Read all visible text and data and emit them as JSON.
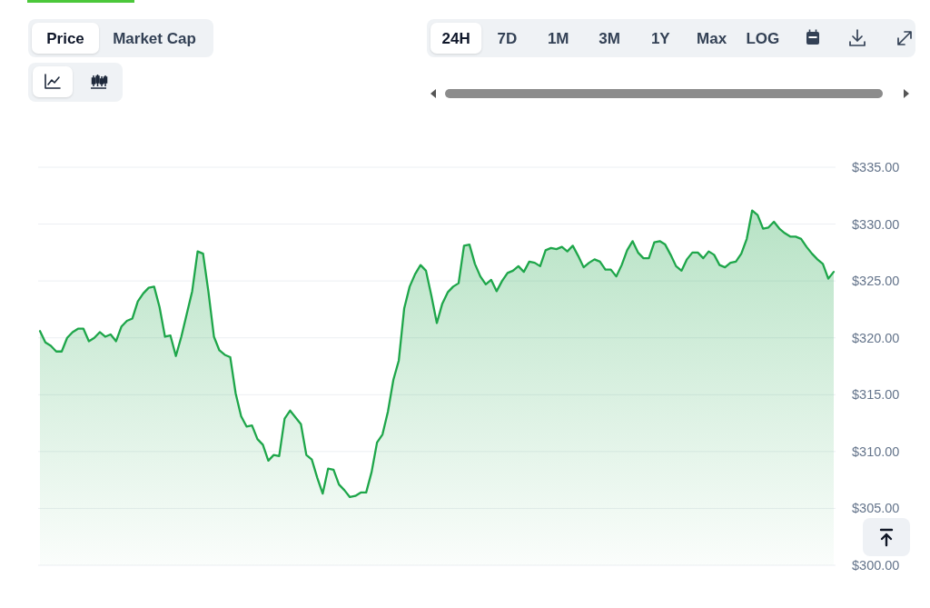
{
  "chart_data": {
    "type": "area",
    "color": "#1ea64a",
    "categories": [
      null,
      null,
      null,
      null,
      null,
      null,
      null,
      null,
      null,
      null,
      null,
      null,
      null,
      null,
      null,
      null,
      null,
      null,
      null,
      null,
      null,
      null,
      null,
      null,
      null,
      null,
      null,
      null,
      null,
      null,
      null,
      null,
      null,
      null,
      null,
      null,
      null,
      null,
      null,
      null,
      null,
      null,
      null,
      null,
      null,
      null,
      null,
      null,
      null,
      null,
      null,
      null,
      null,
      null,
      null,
      null,
      null,
      null,
      null,
      null,
      null,
      null,
      null,
      null,
      null,
      null,
      null,
      null,
      null,
      null,
      null,
      null,
      null,
      null,
      null,
      null,
      null,
      null,
      null,
      null,
      null,
      null,
      null,
      null,
      null,
      null,
      null,
      null,
      null,
      null,
      null,
      null,
      null,
      null,
      null,
      null,
      null,
      null,
      null,
      null,
      null,
      null,
      null,
      null,
      null,
      null,
      null,
      null,
      null,
      null,
      null,
      null,
      null,
      null,
      null,
      null,
      null,
      null,
      null,
      null,
      null,
      null,
      null,
      null,
      null,
      null,
      null,
      null,
      null,
      null,
      null,
      null,
      null,
      null,
      null,
      null,
      null,
      null,
      null,
      null,
      null,
      null,
      null,
      null,
      null,
      null,
      null
    ],
    "values": [
      320.6,
      319.6,
      319.3,
      318.8,
      318.8,
      320.0,
      320.5,
      320.8,
      320.8,
      319.7,
      320.0,
      320.5,
      320.1,
      320.3,
      319.7,
      321.0,
      321.5,
      321.7,
      323.2,
      323.9,
      324.4,
      324.5,
      322.7,
      320.1,
      320.2,
      318.4,
      320.1,
      322.1,
      324.1,
      327.6,
      327.4,
      324.0,
      320.1,
      318.9,
      318.5,
      318.3,
      315.1,
      313.1,
      312.2,
      312.3,
      311.1,
      310.6,
      309.2,
      309.7,
      309.6,
      312.9,
      313.6,
      313.0,
      312.4,
      309.7,
      309.3,
      307.7,
      306.3,
      308.5,
      308.4,
      307.1,
      306.6,
      306.0,
      306.1,
      306.4,
      306.4,
      308.2,
      310.8,
      311.5,
      313.5,
      316.3,
      318.0,
      322.6,
      324.5,
      325.6,
      326.4,
      325.9,
      323.7,
      321.3,
      323.0,
      324.0,
      324.5,
      324.8,
      328.1,
      328.2,
      326.5,
      325.4,
      324.7,
      325.1,
      324.1,
      325.0,
      325.7,
      325.9,
      326.3,
      325.8,
      326.7,
      326.6,
      326.3,
      327.7,
      327.9,
      327.8,
      328.0,
      327.6,
      328.1,
      327.2,
      326.2,
      326.6,
      326.9,
      326.7,
      326.0,
      326.0,
      325.4,
      326.4,
      327.7,
      328.5,
      327.5,
      327.0,
      327.0,
      328.4,
      328.5,
      328.2,
      327.3,
      326.3,
      325.9,
      326.9,
      327.5,
      327.5,
      327.0,
      327.6,
      327.3,
      326.4,
      326.2,
      326.6,
      326.7,
      327.4,
      328.7,
      331.2,
      330.8,
      329.6,
      329.7,
      330.2,
      329.6,
      329.2,
      328.9,
      328.9,
      328.7,
      328.0,
      327.4,
      326.9,
      326.5,
      325.2,
      325.8
    ],
    "ylim": [
      300,
      335
    ],
    "yticks": [
      {
        "value": 300,
        "label": "$300.00"
      },
      {
        "value": 305,
        "label": "$305.00"
      },
      {
        "value": 310,
        "label": "$310.00"
      },
      {
        "value": 315,
        "label": "$315.00"
      },
      {
        "value": 320,
        "label": "$320.00"
      },
      {
        "value": 325,
        "label": "$325.00"
      },
      {
        "value": 330,
        "label": "$330.00"
      },
      {
        "value": 335,
        "label": "$335.00"
      }
    ],
    "grid": "y",
    "tick_labels": "y",
    "annotations": [
      "Price",
      "Market Cap",
      "24H",
      "7D",
      "1M",
      "3M",
      "1Y",
      "Max",
      "LOG"
    ]
  }
}
